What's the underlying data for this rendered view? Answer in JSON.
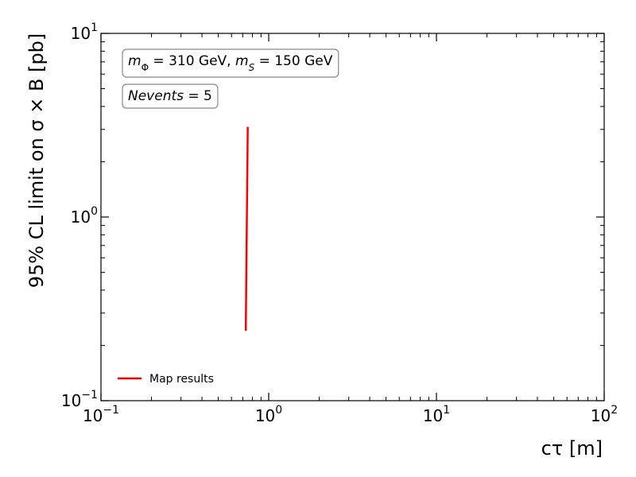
{
  "chart_data": {
    "type": "line",
    "xlabel": "cτ [m]",
    "ylabel": "95% CL limit on σ × B [pb]",
    "xscale": "log",
    "yscale": "log",
    "xlim": [
      0.1,
      100
    ],
    "ylim": [
      0.1,
      10
    ],
    "x_ticks": [
      {
        "base": "10",
        "exp": "−1"
      },
      {
        "base": "10",
        "exp": "0"
      },
      {
        "base": "10",
        "exp": "1"
      },
      {
        "base": "10",
        "exp": "2"
      }
    ],
    "y_ticks": [
      {
        "base": "10",
        "exp": "−1"
      },
      {
        "base": "10",
        "exp": "0"
      },
      {
        "base": "10",
        "exp": "1"
      }
    ],
    "grid": false,
    "legend_position": "lower-left",
    "series": [
      {
        "name": "Map results",
        "color": "#ff0000",
        "x": [
          0.73,
          0.75
        ],
        "y": [
          0.24,
          3.1
        ]
      }
    ],
    "annotations": [
      {
        "id": "mass",
        "lines": [
          {
            "text": "m",
            "style": "italic"
          },
          {
            "text": "Φ",
            "style": "sub"
          },
          {
            "text": " = 310 GeV, ",
            "style": "normal"
          },
          {
            "text": "m",
            "style": "italic"
          },
          {
            "text": "S",
            "style": "sub-italic"
          },
          {
            "text": " = 150 GeV",
            "style": "normal"
          }
        ]
      },
      {
        "id": "nevents",
        "lines": [
          {
            "text": "Nevents",
            "style": "italic"
          },
          {
            "text": " = 5",
            "style": "normal"
          }
        ]
      }
    ]
  }
}
